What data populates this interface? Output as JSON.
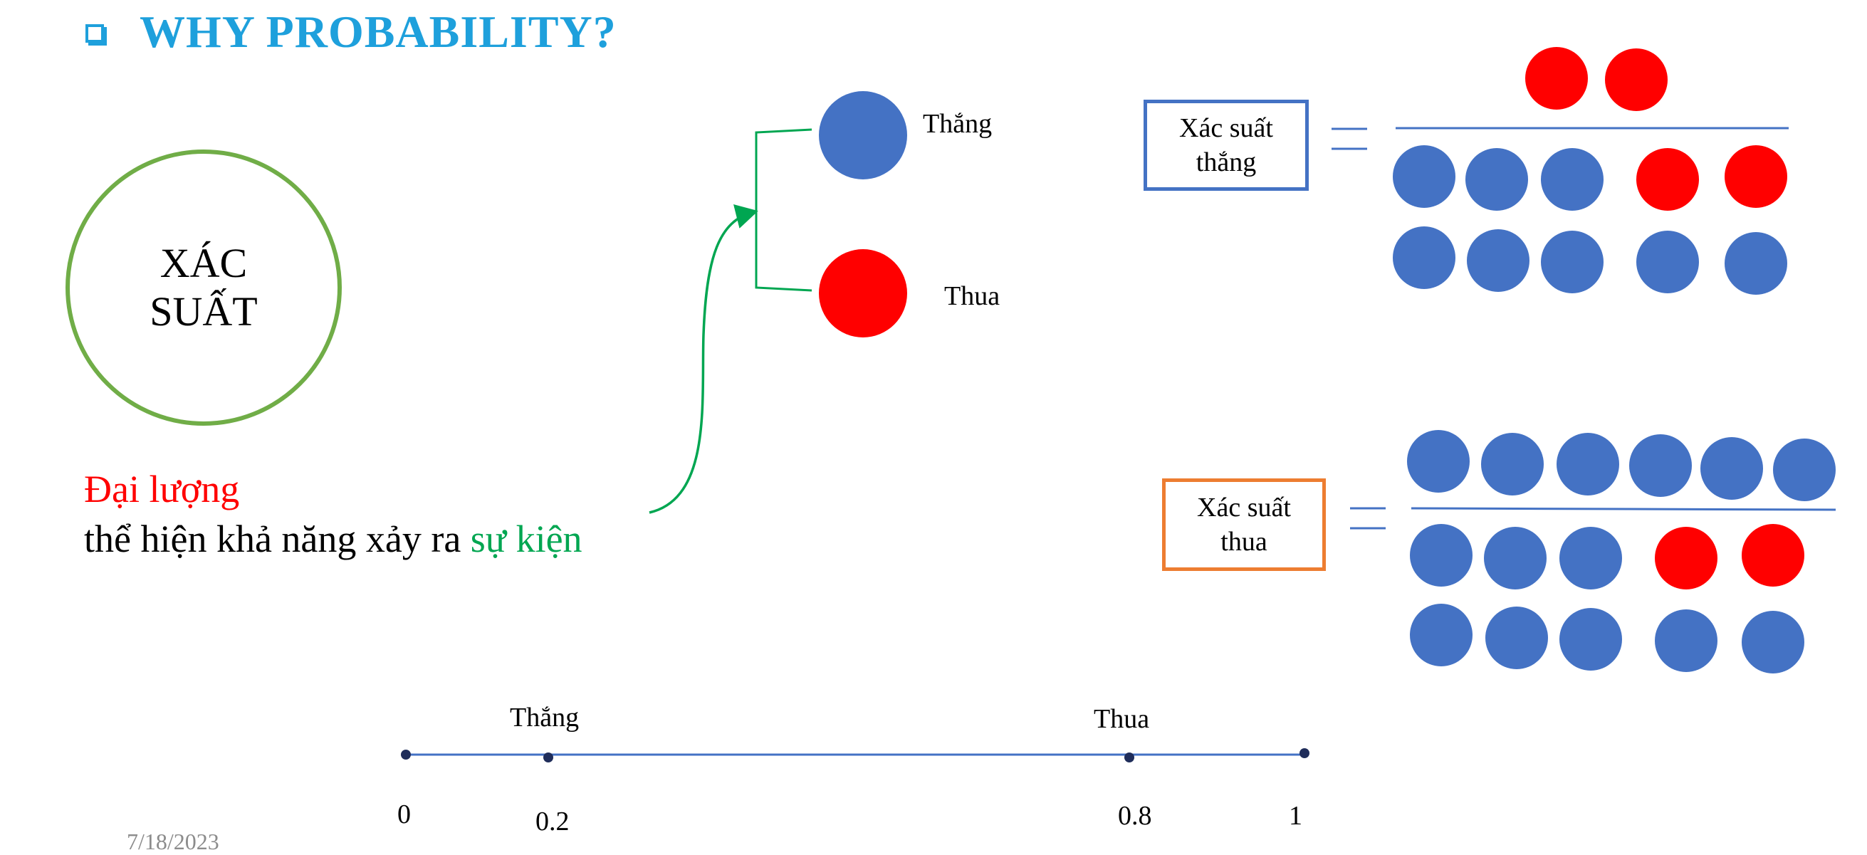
{
  "slide": {
    "title": "WHY PROBABILITY?",
    "bullet_icon": "hollow-square-bullet"
  },
  "concept": {
    "circle_text_line1": "XÁC",
    "circle_text_line2": "SUẤT",
    "definition_part1": "Đại lượng",
    "definition_part2": "thể hiện khả năng xảy ra ",
    "definition_part3": "sự kiện"
  },
  "outcomes": {
    "win_label": "Thắng",
    "lose_label": "Thua"
  },
  "formulas": {
    "win_box_line1": "Xác suất",
    "win_box_line2": "thắng",
    "lose_box_line1": "Xác suất",
    "lose_box_line2": "thua",
    "win_numerator": {
      "blue": 0,
      "red": 2
    },
    "win_denominator": {
      "blue": 8,
      "red": 2
    },
    "lose_numerator": {
      "blue": 6,
      "red": 0
    },
    "lose_denominator": {
      "blue": 8,
      "red": 2
    }
  },
  "number_line": {
    "ticks": [
      "0",
      "0.2",
      "0.8",
      "1"
    ],
    "win_label": "Thắng",
    "lose_label": "Thua"
  },
  "footer": {
    "date": "7/18/2023"
  },
  "colors": {
    "title": "#1ea0dc",
    "blue_ball": "#4472c4",
    "red_ball": "#ff0000",
    "circle_border": "#70ad47",
    "arrow": "#00a651",
    "lose_box_border": "#ed7d31",
    "line": "#4472c4"
  }
}
